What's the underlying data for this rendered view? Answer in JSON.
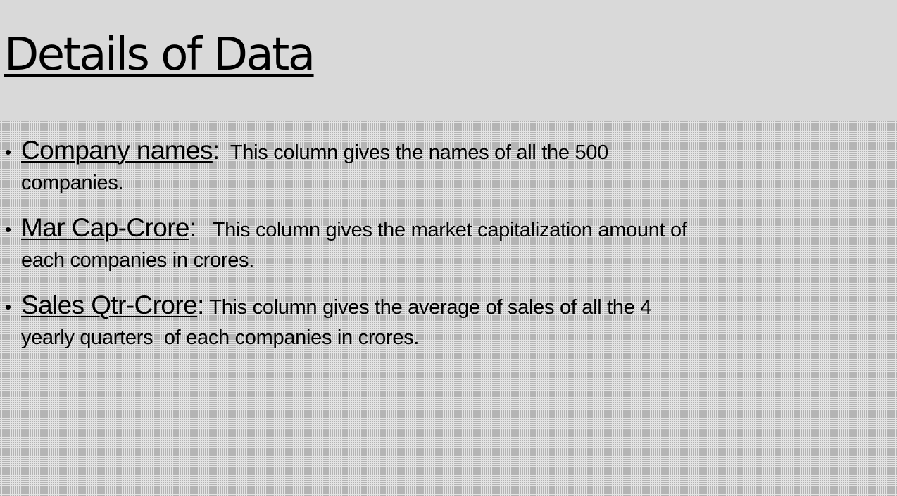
{
  "slide": {
    "title": "Details of Data",
    "bullets": [
      {
        "term": "Company names",
        "separator": ":",
        "text_line1": "  This column gives the names of all the 500",
        "text_line2": "companies."
      },
      {
        "term": "Mar Cap-Crore",
        "separator": ":",
        "text_line1": "   This column gives the market capitalization amount of",
        "text_line2": "each companies in crores."
      },
      {
        "term": "Sales Qtr-Crore",
        "separator": ":",
        "text_line1": " This column gives the average of sales of all the 4",
        "text_line2": "yearly quarters  of each companies in crores."
      }
    ]
  },
  "colors": {
    "title_band": "#d9d9d9",
    "content_background": "#e3e3e3",
    "text": "#000000"
  }
}
